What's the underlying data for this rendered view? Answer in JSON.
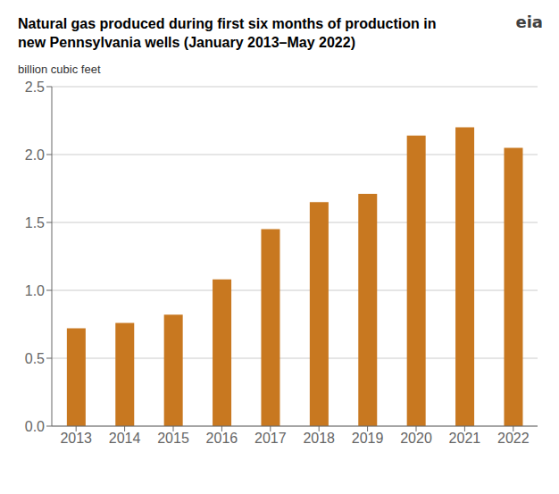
{
  "chart_data": {
    "type": "bar",
    "title": "Natural gas produced during first six months of production in new Pennsylvania wells (January 2013–May 2022)",
    "ylabel": "billion cubic feet",
    "annotation": "eia",
    "categories": [
      "2013",
      "2014",
      "2015",
      "2016",
      "2017",
      "2018",
      "2019",
      "2020",
      "2021",
      "2022"
    ],
    "values": [
      0.72,
      0.76,
      0.82,
      1.08,
      1.45,
      1.65,
      1.71,
      2.14,
      2.2,
      2.05
    ],
    "color": "#C87820",
    "ylim": [
      0,
      2.5
    ],
    "yticks": [
      {
        "value": 0,
        "label": "0.0"
      },
      0.5,
      {
        "value": 1,
        "label": "1.0"
      },
      1.5,
      {
        "value": 2,
        "label": "2.0"
      },
      2.5
    ],
    "grid": true
  }
}
